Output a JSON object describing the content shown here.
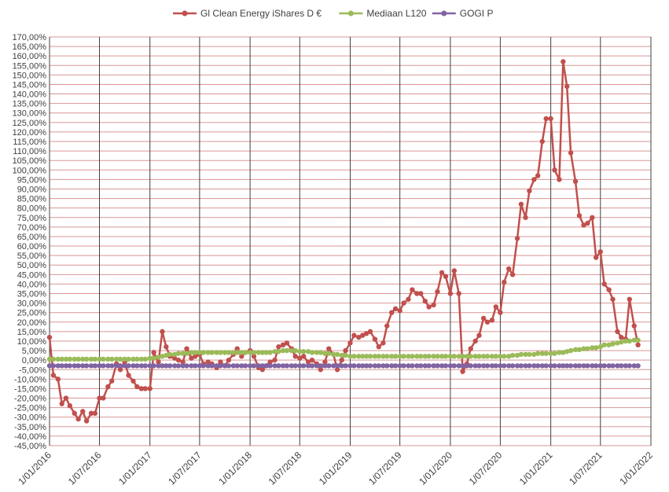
{
  "chart_data": {
    "type": "line",
    "x": [
      "2016-01-01",
      "2016-01-15",
      "2016-02-01",
      "2016-02-15",
      "2016-03-01",
      "2016-03-15",
      "2016-04-01",
      "2016-04-15",
      "2016-05-01",
      "2016-05-15",
      "2016-06-01",
      "2016-06-15",
      "2016-07-01",
      "2016-07-15",
      "2016-08-01",
      "2016-08-15",
      "2016-09-01",
      "2016-09-15",
      "2016-10-01",
      "2016-10-15",
      "2016-11-01",
      "2016-11-15",
      "2016-12-01",
      "2016-12-15",
      "2017-01-01",
      "2017-01-15",
      "2017-02-01",
      "2017-02-15",
      "2017-03-01",
      "2017-03-15",
      "2017-04-01",
      "2017-04-15",
      "2017-05-01",
      "2017-05-15",
      "2017-06-01",
      "2017-06-15",
      "2017-07-01",
      "2017-07-15",
      "2017-08-01",
      "2017-08-15",
      "2017-09-01",
      "2017-09-15",
      "2017-10-01",
      "2017-10-15",
      "2017-11-01",
      "2017-11-15",
      "2017-12-01",
      "2017-12-15",
      "2018-01-01",
      "2018-01-15",
      "2018-02-01",
      "2018-02-15",
      "2018-03-01",
      "2018-03-15",
      "2018-04-01",
      "2018-04-15",
      "2018-05-01",
      "2018-05-15",
      "2018-06-01",
      "2018-06-15",
      "2018-07-01",
      "2018-07-15",
      "2018-08-01",
      "2018-08-15",
      "2018-09-01",
      "2018-09-15",
      "2018-10-01",
      "2018-10-15",
      "2018-11-01",
      "2018-11-15",
      "2018-12-01",
      "2018-12-15",
      "2019-01-01",
      "2019-01-15",
      "2019-02-01",
      "2019-02-15",
      "2019-03-01",
      "2019-03-15",
      "2019-04-01",
      "2019-04-15",
      "2019-05-01",
      "2019-05-15",
      "2019-06-01",
      "2019-06-15",
      "2019-07-01",
      "2019-07-15",
      "2019-08-01",
      "2019-08-15",
      "2019-09-01",
      "2019-09-15",
      "2019-10-01",
      "2019-10-15",
      "2019-11-01",
      "2019-11-15",
      "2019-12-01",
      "2019-12-15",
      "2020-01-01",
      "2020-01-15",
      "2020-02-01",
      "2020-02-15",
      "2020-03-01",
      "2020-03-15",
      "2020-04-01",
      "2020-04-15",
      "2020-05-01",
      "2020-05-15",
      "2020-06-01",
      "2020-06-15",
      "2020-07-01",
      "2020-07-15",
      "2020-08-01",
      "2020-08-15",
      "2020-09-01",
      "2020-09-15",
      "2020-10-01",
      "2020-10-15",
      "2020-11-01",
      "2020-11-15",
      "2020-12-01",
      "2020-12-15",
      "2021-01-01",
      "2021-01-15",
      "2021-02-01",
      "2021-02-15",
      "2021-03-01",
      "2021-03-15",
      "2021-04-01",
      "2021-04-15",
      "2021-05-01",
      "2021-05-15",
      "2021-06-01",
      "2021-06-15",
      "2021-07-01",
      "2021-07-15",
      "2021-08-01",
      "2021-08-15",
      "2021-09-01",
      "2021-09-15",
      "2021-10-01",
      "2021-10-15",
      "2021-11-01",
      "2021-11-15"
    ],
    "series": [
      {
        "name": "Gl Clean Energy iShares D €",
        "color": "#c0504d",
        "values": [
          12,
          -8,
          -10,
          -23,
          -20,
          -24,
          -28,
          -31,
          -27,
          -32,
          -28,
          -28,
          -20,
          -20,
          -14,
          -11,
          -2,
          -5,
          -1,
          -8,
          -11,
          -14,
          -15,
          -15,
          -15,
          4,
          -1,
          15,
          7,
          2,
          1,
          0,
          -1,
          6,
          1,
          2,
          3,
          -2,
          -1,
          -2,
          -4,
          -1,
          -3,
          0,
          3,
          6,
          2,
          4,
          5,
          2,
          -4,
          -5,
          -3,
          -1,
          0,
          7,
          8,
          9,
          6,
          2,
          1,
          2,
          -1,
          0,
          -2,
          -5,
          -1,
          6,
          3,
          -5,
          0,
          5,
          9,
          13,
          12,
          13,
          14,
          15,
          11,
          7,
          9,
          18,
          25,
          27,
          26,
          30,
          32,
          37,
          35,
          35,
          31,
          28,
          29,
          36,
          46,
          44,
          35,
          47,
          35,
          -6,
          -2,
          6,
          10,
          13,
          22,
          20,
          21,
          28,
          25,
          41,
          48,
          45,
          64,
          82,
          75,
          89,
          95,
          97,
          115,
          127,
          127,
          100,
          95,
          157,
          144,
          109,
          94,
          76,
          71,
          72,
          75,
          54,
          57,
          40,
          37,
          32,
          15,
          12,
          11,
          32,
          18,
          8
        ]
      },
      {
        "name": "Mediaan L120",
        "color": "#9bbb59",
        "values": [
          0.5,
          0.5,
          0.5,
          0.5,
          0.5,
          0.5,
          0.5,
          0.5,
          0.5,
          0.5,
          0.5,
          0.5,
          0.5,
          0.5,
          0.5,
          0.5,
          0.5,
          0.5,
          0.5,
          0.5,
          0.5,
          0.5,
          0.5,
          0.5,
          1,
          1,
          1.5,
          2,
          2.5,
          3,
          3,
          3.5,
          3.5,
          3.5,
          4,
          4,
          4,
          4,
          4,
          4,
          4,
          4,
          4,
          4,
          4,
          4,
          4,
          4,
          4,
          4,
          4,
          4,
          4,
          4,
          4.5,
          4.5,
          5,
          5,
          5,
          5,
          4.5,
          4.5,
          4.5,
          4,
          4,
          4,
          3.5,
          3.5,
          3,
          3,
          2.5,
          2.5,
          2,
          2,
          2,
          2,
          2,
          2,
          2,
          2,
          2,
          2,
          2,
          2,
          2,
          2,
          2,
          2,
          2,
          2,
          2,
          2,
          2,
          2,
          2,
          2,
          2,
          2,
          2,
          2,
          2,
          2,
          2,
          2,
          2,
          2,
          2,
          2,
          2,
          2,
          2,
          2.5,
          2.5,
          3,
          3,
          3,
          3,
          3.5,
          3.5,
          3.5,
          3.5,
          3.5,
          4,
          4,
          4.5,
          5,
          5.5,
          5.5,
          6,
          6,
          6.5,
          6.5,
          7,
          8,
          8,
          8.5,
          9,
          9.5,
          10,
          10,
          10.5,
          10.5
        ]
      },
      {
        "name": "GOGI P",
        "color": "#8064a2",
        "values": [
          -3,
          -3,
          -3,
          -3,
          -3,
          -3,
          -3,
          -3,
          -3,
          -3,
          -3,
          -3,
          -3,
          -3,
          -3,
          -3,
          -3,
          -3,
          -3,
          -3,
          -3,
          -3,
          -3,
          -3,
          -3,
          -3,
          -3,
          -3,
          -3,
          -3,
          -3,
          -3,
          -3,
          -3,
          -3,
          -3,
          -3,
          -3,
          -3,
          -3,
          -3,
          -3,
          -3,
          -3,
          -3,
          -3,
          -3,
          -3,
          -3,
          -3,
          -3,
          -3,
          -3,
          -3,
          -3,
          -3,
          -3,
          -3,
          -3,
          -3,
          -3,
          -3,
          -3,
          -3,
          -3,
          -3,
          -3,
          -3,
          -3,
          -3,
          -3,
          -3,
          -3,
          -3,
          -3,
          -3,
          -3,
          -3,
          -3,
          -3,
          -3,
          -3,
          -3,
          -3,
          -3,
          -3,
          -3,
          -3,
          -3,
          -3,
          -3,
          -3,
          -3,
          -3,
          -3,
          -3,
          -3,
          -3,
          -3,
          -3,
          -3,
          -3,
          -3,
          -3,
          -3,
          -3,
          -3,
          -3,
          -3,
          -3,
          -3,
          -3,
          -3,
          -3,
          -3,
          -3,
          -3,
          -3,
          -3,
          -3,
          -3,
          -3,
          -3,
          -3,
          -3,
          -3,
          -3,
          -3,
          -3,
          -3,
          -3,
          -3,
          -3,
          -3,
          -3,
          -3,
          -3,
          -3,
          -3,
          -3,
          -3,
          -3
        ]
      }
    ],
    "xlim": [
      "2016-01-01",
      "2022-01-01"
    ],
    "xticks": [
      {
        "value": "2016-01-01",
        "label": "1/01/2016"
      },
      {
        "value": "2016-07-01",
        "label": "1/07/2016"
      },
      {
        "value": "2017-01-01",
        "label": "1/01/2017"
      },
      {
        "value": "2017-07-01",
        "label": "1/07/2017"
      },
      {
        "value": "2018-01-01",
        "label": "1/01/2018"
      },
      {
        "value": "2018-07-01",
        "label": "1/07/2018"
      },
      {
        "value": "2019-01-01",
        "label": "1/01/2019"
      },
      {
        "value": "2019-07-01",
        "label": "1/07/2019"
      },
      {
        "value": "2020-01-01",
        "label": "1/01/2020"
      },
      {
        "value": "2020-07-01",
        "label": "1/07/2020"
      },
      {
        "value": "2021-01-01",
        "label": "1/01/2021"
      },
      {
        "value": "2021-07-01",
        "label": "1/07/2021"
      },
      {
        "value": "2022-01-01",
        "label": "1/01/2022"
      }
    ],
    "ylim": [
      -45,
      170
    ],
    "yticks": [
      {
        "value": -45,
        "label": "-45,00%"
      },
      {
        "value": -40,
        "label": "-40,00%"
      },
      {
        "value": -35,
        "label": "-35,00%"
      },
      {
        "value": -30,
        "label": "-30,00%"
      },
      {
        "value": -25,
        "label": "-25,00%"
      },
      {
        "value": -20,
        "label": "-20,00%"
      },
      {
        "value": -15,
        "label": "-15,00%"
      },
      {
        "value": -10,
        "label": "-10,00%"
      },
      {
        "value": -5,
        "label": "-5,00%"
      },
      {
        "value": 0,
        "label": "0,00%"
      },
      {
        "value": 5,
        "label": "5,00%"
      },
      {
        "value": 10,
        "label": "10,00%"
      },
      {
        "value": 15,
        "label": "15,00%"
      },
      {
        "value": 20,
        "label": "20,00%"
      },
      {
        "value": 25,
        "label": "25,00%"
      },
      {
        "value": 30,
        "label": "30,00%"
      },
      {
        "value": 35,
        "label": "35,00%"
      },
      {
        "value": 40,
        "label": "40,00%"
      },
      {
        "value": 45,
        "label": "45,00%"
      },
      {
        "value": 50,
        "label": "50,00%"
      },
      {
        "value": 55,
        "label": "55,00%"
      },
      {
        "value": 60,
        "label": "60,00%"
      },
      {
        "value": 65,
        "label": "65,00%"
      },
      {
        "value": 70,
        "label": "70,00%"
      },
      {
        "value": 75,
        "label": "75,00%"
      },
      {
        "value": 80,
        "label": "80,00%"
      },
      {
        "value": 85,
        "label": "85,00%"
      },
      {
        "value": 90,
        "label": "90,00%"
      },
      {
        "value": 95,
        "label": "95,00%"
      },
      {
        "value": 100,
        "label": "100,00%"
      },
      {
        "value": 105,
        "label": "105,00%"
      },
      {
        "value": 110,
        "label": "110,00%"
      },
      {
        "value": 115,
        "label": "115,00%"
      },
      {
        "value": 120,
        "label": "120,00%"
      },
      {
        "value": 125,
        "label": "125,00%"
      },
      {
        "value": 130,
        "label": "130,00%"
      },
      {
        "value": 135,
        "label": "135,00%"
      },
      {
        "value": 140,
        "label": "140,00%"
      },
      {
        "value": 145,
        "label": "145,00%"
      },
      {
        "value": 150,
        "label": "150,00%"
      },
      {
        "value": 155,
        "label": "155,00%"
      },
      {
        "value": 160,
        "label": "160,00%"
      },
      {
        "value": 165,
        "label": "165,00%"
      },
      {
        "value": 170,
        "label": "170,00%"
      }
    ],
    "grid": true,
    "legend": "top"
  }
}
